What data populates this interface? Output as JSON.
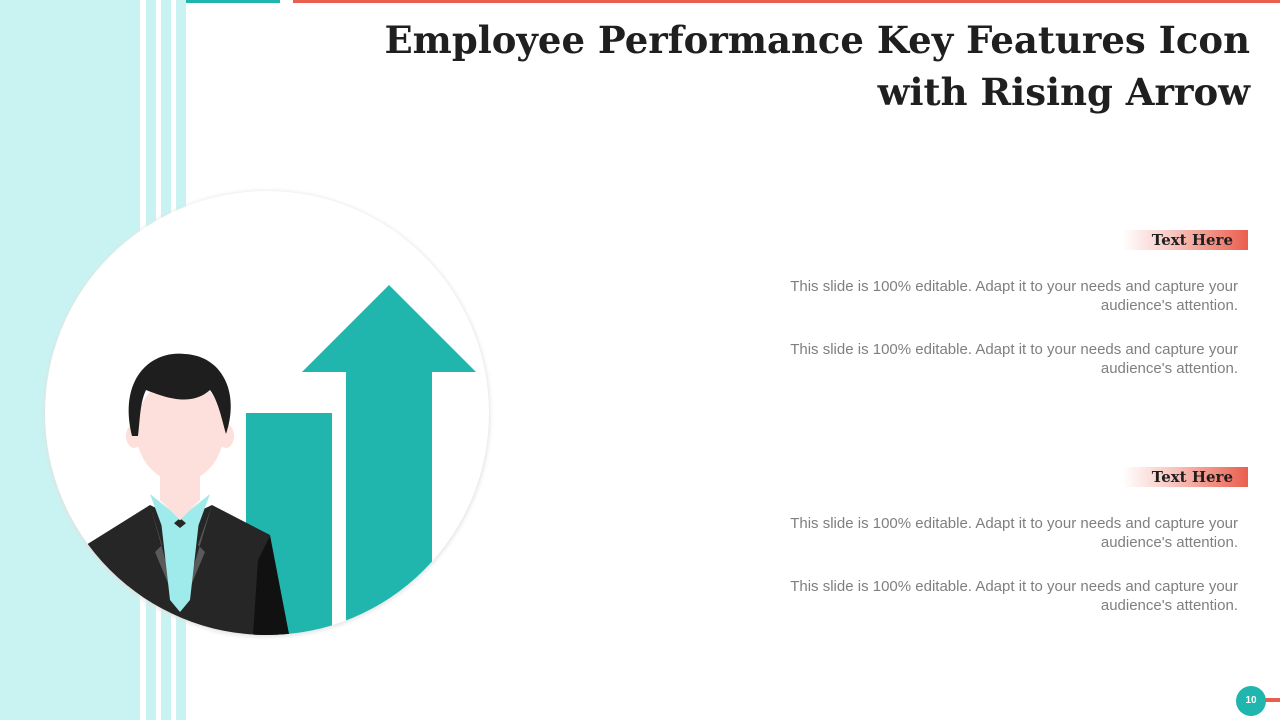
{
  "slide": {
    "title": "Employee Performance Key Features Icon with Rising Arrow",
    "page_number": "10"
  },
  "sections": [
    {
      "heading": "Text Here",
      "paragraphs": [
        "This slide is 100% editable. Adapt it to your needs and capture your audience's attention.",
        "This slide is 100% editable. Adapt it to your needs and capture your audience's attention."
      ]
    },
    {
      "heading": "Text Here",
      "paragraphs": [
        "This slide is 100% editable. Adapt it to your needs and capture your audience's attention.",
        "This slide is 100% editable. Adapt it to your needs and capture your audience's attention."
      ]
    }
  ],
  "colors": {
    "teal": "#20b6ad",
    "light_teal": "#c8f3f2",
    "coral": "#ea5e4d",
    "suit": "#262626",
    "hair": "#1e1e1e",
    "skin": "#fde0dc"
  }
}
